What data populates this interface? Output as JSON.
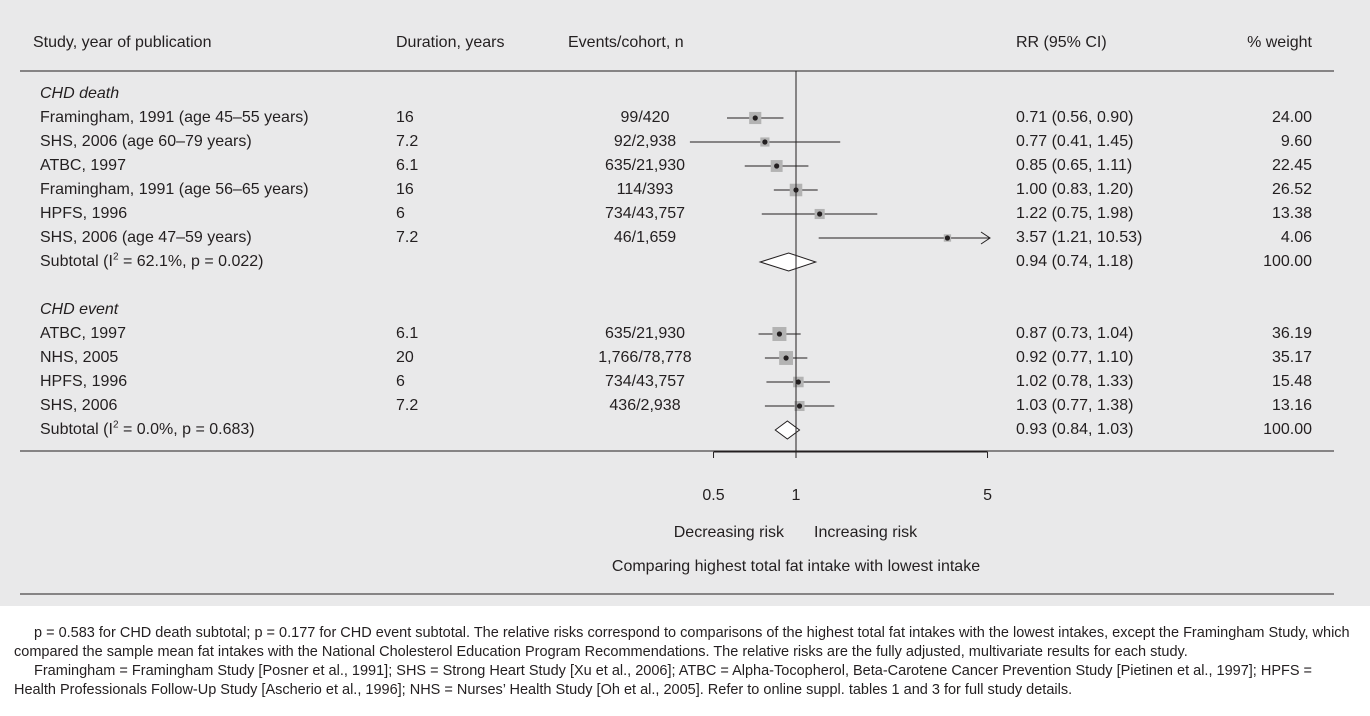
{
  "header": {
    "study": "Study, year of publication",
    "duration": "Duration, years",
    "events": "Events/cohort, n",
    "rr": "RR (95% CI)",
    "weight": "% weight"
  },
  "groups": [
    {
      "label": "CHD death",
      "rows": [
        {
          "study": "Framingham, 1991 (age 45–55 years)",
          "duration": "16",
          "events": "99/420",
          "rr_text": "0.71 (0.56, 0.90)",
          "weight": "24.00",
          "rr": 0.71,
          "lo": 0.56,
          "hi": 0.9,
          "w": 24.0
        },
        {
          "study": "SHS, 2006 (age 60–79 years)",
          "duration": "7.2",
          "events": "92/2,938",
          "rr_text": "0.77 (0.41, 1.45)",
          "weight": "9.60",
          "rr": 0.77,
          "lo": 0.41,
          "hi": 1.45,
          "w": 9.6
        },
        {
          "study": "ATBC, 1997",
          "duration": "6.1",
          "events": "635/21,930",
          "rr_text": "0.85 (0.65, 1.11)",
          "weight": "22.45",
          "rr": 0.85,
          "lo": 0.65,
          "hi": 1.11,
          "w": 22.45
        },
        {
          "study": "Framingham, 1991 (age 56–65 years)",
          "duration": "16",
          "events": "114/393",
          "rr_text": "1.00 (0.83, 1.20)",
          "weight": "26.52",
          "rr": 1.0,
          "lo": 0.83,
          "hi": 1.2,
          "w": 26.52
        },
        {
          "study": "HPFS, 1996",
          "duration": "6",
          "events": "734/43,757",
          "rr_text": "1.22 (0.75, 1.98)",
          "weight": "13.38",
          "rr": 1.22,
          "lo": 0.75,
          "hi": 1.98,
          "w": 13.38
        },
        {
          "study": "SHS, 2006 (age 47–59 years)",
          "duration": "7.2",
          "events": "46/1,659",
          "rr_text": "3.57 (1.21, 10.53)",
          "weight": "4.06",
          "rr": 3.57,
          "lo": 1.21,
          "hi": 10.53,
          "w": 4.06
        }
      ],
      "subtotal": {
        "label_pre": "Subtotal (I",
        "label_sup": "2",
        "label_post": " = 62.1%, p = 0.022)",
        "rr_text": "0.94 (0.74, 1.18)",
        "weight": "100.00",
        "rr": 0.94,
        "lo": 0.74,
        "hi": 1.18
      }
    },
    {
      "label": "CHD event",
      "rows": [
        {
          "study": "ATBC, 1997",
          "duration": "6.1",
          "events": "635/21,930",
          "rr_text": "0.87 (0.73, 1.04)",
          "weight": "36.19",
          "rr": 0.87,
          "lo": 0.73,
          "hi": 1.04,
          "w": 36.19
        },
        {
          "study": "NHS, 2005",
          "duration": "20",
          "events": "1,766/78,778",
          "rr_text": "0.92 (0.77, 1.10)",
          "weight": "35.17",
          "rr": 0.92,
          "lo": 0.77,
          "hi": 1.1,
          "w": 35.17
        },
        {
          "study": "HPFS, 1996",
          "duration": "6",
          "events": "734/43,757",
          "rr_text": "1.02 (0.78, 1.33)",
          "weight": "15.48",
          "rr": 1.02,
          "lo": 0.78,
          "hi": 1.33,
          "w": 15.48
        },
        {
          "study": "SHS, 2006",
          "duration": "7.2",
          "events": "436/2,938",
          "rr_text": "1.03 (0.77, 1.38)",
          "weight": "13.16",
          "rr": 1.03,
          "lo": 0.77,
          "hi": 1.38,
          "w": 13.16
        }
      ],
      "subtotal": {
        "label_pre": "Subtotal (I",
        "label_sup": "2",
        "label_post": " = 0.0%, p = 0.683)",
        "rr_text": "0.93 (0.84, 1.03)",
        "weight": "100.00",
        "rr": 0.93,
        "lo": 0.84,
        "hi": 1.03
      }
    }
  ],
  "axis": {
    "ticks": [
      {
        "value": 0.5,
        "label": "0.5"
      },
      {
        "value": 1,
        "label": "1"
      },
      {
        "value": 5,
        "label": "5"
      }
    ],
    "left_label": "Decreasing risk",
    "right_label": "Increasing risk",
    "caption": "Comparing highest total fat intake with lowest intake"
  },
  "footnote": {
    "p1": "p = 0.583 for CHD death subtotal; p = 0.177 for CHD event subtotal. The relative risks correspond to comparisons of the highest total fat intakes with the lowest intakes, except the Framingham Study, which compared the sample mean fat intakes with the National Cholesterol Education Program Recommendations. The relative risks are the fully adjusted, multivariate results for each study.",
    "p2": "Framingham = Framingham Study [Posner et al., 1991]; SHS = Strong Heart Study [Xu et al., 2006]; ATBC = Alpha-Tocopherol, Beta-Carotene Cancer Prevention Study [Pietinen et al., 1997]; HPFS = Health Professionals Follow-Up Study [Ascherio et al., 1996]; NHS = Nurses’ Health Study [Oh et al., 2005]. Refer to online suppl. tables 1 and 3 for full study details."
  },
  "colors": {
    "panel": "#e9e9ea",
    "ink": "#231f20",
    "weight_box": "#b3b3b3"
  },
  "chart_data": {
    "type": "forest",
    "x_scale": "log",
    "reference_line": 1,
    "xlim": [
      0.33,
      5.7
    ],
    "xlabel": "Comparing highest total fat intake with lowest intake",
    "groups": [
      {
        "name": "CHD death",
        "estimates": [
          0.71,
          0.77,
          0.85,
          1.0,
          1.22,
          3.57
        ],
        "lower": [
          0.56,
          0.41,
          0.65,
          0.83,
          0.75,
          1.21
        ],
        "upper": [
          0.9,
          1.45,
          1.11,
          1.2,
          1.98,
          10.53
        ],
        "weights": [
          24.0,
          9.6,
          22.45,
          26.52,
          13.38,
          4.06
        ],
        "subtotal": {
          "estimate": 0.94,
          "lower": 0.74,
          "upper": 1.18
        }
      },
      {
        "name": "CHD event",
        "estimates": [
          0.87,
          0.92,
          1.02,
          1.03
        ],
        "lower": [
          0.73,
          0.77,
          0.78,
          0.77
        ],
        "upper": [
          1.04,
          1.1,
          1.33,
          1.38
        ],
        "weights": [
          36.19,
          35.17,
          15.48,
          13.16
        ],
        "subtotal": {
          "estimate": 0.93,
          "lower": 0.84,
          "upper": 1.03
        }
      }
    ]
  }
}
